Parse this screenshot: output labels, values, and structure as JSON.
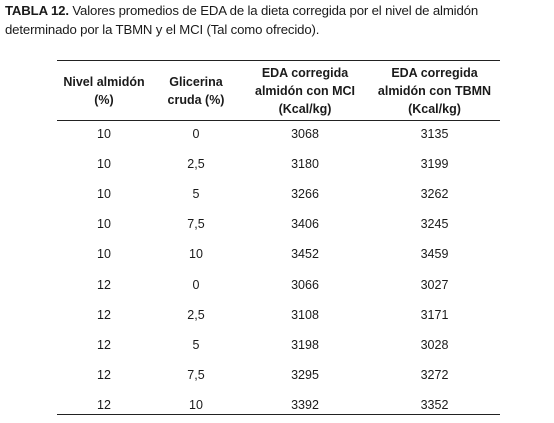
{
  "caption": {
    "label": "TABLA 12.",
    "text": " Valores promedios de EDA de la dieta corregida por el nivel de almidón determinado por la TBMN y el MCI (Tal como ofrecido)."
  },
  "table": {
    "headers": [
      [
        "Nivel almidón",
        "(%)"
      ],
      [
        "Glicerina",
        "cruda (%)"
      ],
      [
        "EDA corregida",
        "almidón con MCI",
        "(Kcal/kg)"
      ],
      [
        "EDA corregida",
        "almidón con TBMN",
        "(Kcal/kg)"
      ]
    ],
    "rows": [
      [
        "10",
        "0",
        "3068",
        "3135"
      ],
      [
        "10",
        "2,5",
        "3180",
        "3199"
      ],
      [
        "10",
        "5",
        "3266",
        "3262"
      ],
      [
        "10",
        "7,5",
        "3406",
        "3245"
      ],
      [
        "10",
        "10",
        "3452",
        "3459"
      ],
      [
        "12",
        "0",
        "3066",
        "3027"
      ],
      [
        "12",
        "2,5",
        "3108",
        "3171"
      ],
      [
        "12",
        "5",
        "3198",
        "3028"
      ],
      [
        "12",
        "7,5",
        "3295",
        "3272"
      ],
      [
        "12",
        "10",
        "3392",
        "3352"
      ]
    ]
  }
}
